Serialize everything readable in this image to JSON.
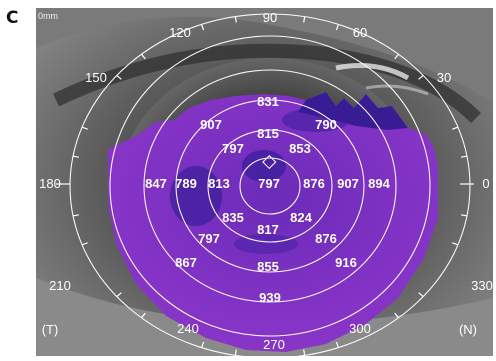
{
  "panel": {
    "letter": "C"
  },
  "scale_label": "0mm",
  "orientation": {
    "temporal": "(T)",
    "nasal": "(N)"
  },
  "angle_labels": [
    "90",
    "120",
    "60",
    "150",
    "30",
    "180",
    "0",
    "210",
    "330",
    "240",
    "300",
    "270"
  ],
  "thickness_map": {
    "values": [
      "831",
      "907",
      "790",
      "815",
      "797",
      "853",
      "847",
      "789",
      "813",
      "797",
      "876",
      "907",
      "894",
      "835",
      "824",
      "817",
      "797",
      "876",
      "867",
      "855",
      "916",
      "939"
    ]
  },
  "colors": {
    "map_fill": "#7f2fc0",
    "map_dark": "#3a1d9a",
    "overlay_line": "#ffffff",
    "background_eye": "#5e5e5e"
  }
}
